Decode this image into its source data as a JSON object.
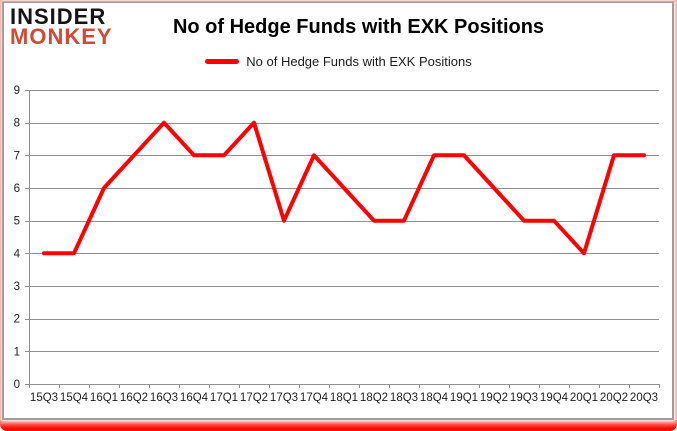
{
  "logo": {
    "line1": "INSIDER",
    "line2": "MONKEY"
  },
  "legend": {
    "label": "No of Hedge Funds with EXK Positions"
  },
  "colors": {
    "line": "#ff0000",
    "grid": "#909090",
    "axis_text": "#1f1f1f",
    "logo_monkey": "#d04a38",
    "highlight": "#fa0a05"
  },
  "chart_data": {
    "type": "line",
    "title": "No of Hedge Funds with EXK Positions",
    "categories": [
      "15Q3",
      "15Q4",
      "16Q1",
      "16Q2",
      "16Q3",
      "16Q4",
      "17Q1",
      "17Q2",
      "17Q3",
      "17Q4",
      "18Q1",
      "18Q2",
      "18Q3",
      "18Q4",
      "19Q1",
      "19Q2",
      "19Q3",
      "19Q4",
      "20Q1",
      "20Q2",
      "20Q3"
    ],
    "series": [
      {
        "name": "No of Hedge Funds with EXK Positions",
        "color": "#ff0000",
        "values": [
          4,
          4,
          6,
          7,
          8,
          7,
          7,
          8,
          5,
          7,
          6,
          5,
          5,
          7,
          7,
          6,
          5,
          5,
          4,
          7,
          7
        ]
      }
    ],
    "xlabel": "",
    "ylabel": "",
    "ylim": [
      0,
      9
    ],
    "ytick_step": 1,
    "grid": true,
    "legend_position": "top"
  }
}
